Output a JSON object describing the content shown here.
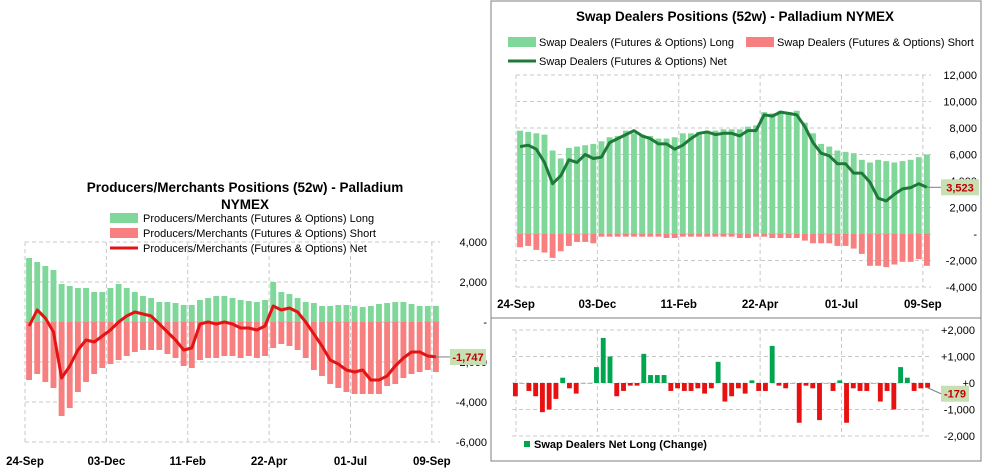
{
  "colors": {
    "long": "#7fd89a",
    "short": "#f77f7f",
    "net_left": "#e31414",
    "net_right": "#1f7a3a",
    "pos_change": "#00a550",
    "neg_change": "#e81111",
    "callout_bg": "#c6e0b4",
    "grid": "#c8c8c8",
    "green_tick": "#00b050",
    "red_tick": "#e81111"
  },
  "chart_data": [
    {
      "id": "producers",
      "type": "bar",
      "title": "Producers/Merchants  Positions  (52w) - Palladium",
      "title_line2": "NYMEX",
      "legend": [
        "Producers/Merchants (Futures & Options)  Long",
        "Producers/Merchants (Futures & Options)  Short",
        "Producers/Merchants (Futures & Options)  Net"
      ],
      "xtick_labels": [
        "24-Sep",
        "03-Dec",
        "11-Feb",
        "22-Apr",
        "01-Jul",
        "09-Sep"
      ],
      "xtick_index": [
        0,
        10,
        20,
        30,
        40,
        50
      ],
      "yticks": [
        4000,
        2000,
        0,
        -2000,
        -4000,
        -6000
      ],
      "ytick_labels": [
        "4,000",
        "2,000",
        "-",
        "-2,000",
        "-4,000",
        "-6,000"
      ],
      "ylim": [
        -6000,
        4000
      ],
      "long": [
        3200,
        3000,
        2800,
        2600,
        1900,
        1800,
        1700,
        1700,
        1500,
        1500,
        1700,
        1900,
        1700,
        1500,
        1300,
        1200,
        1000,
        1000,
        950,
        850,
        850,
        1100,
        1200,
        1300,
        1300,
        1200,
        1100,
        1050,
        1000,
        1100,
        2000,
        1500,
        1400,
        1200,
        1000,
        950,
        800,
        800,
        850,
        850,
        800,
        750,
        800,
        900,
        950,
        1000,
        1000,
        900,
        800,
        800,
        800
      ],
      "short": [
        -2900,
        -2600,
        -3000,
        -3300,
        -4700,
        -4300,
        -3500,
        -3000,
        -2600,
        -2300,
        -2100,
        -1900,
        -1700,
        -1500,
        -1400,
        -1400,
        -1400,
        -1600,
        -1800,
        -2200,
        -2300,
        -1900,
        -1800,
        -1800,
        -1700,
        -1700,
        -1800,
        -1700,
        -1800,
        -1700,
        -1300,
        -1100,
        -1200,
        -1400,
        -1800,
        -2400,
        -2700,
        -3100,
        -3300,
        -3500,
        -3600,
        -3600,
        -3600,
        -3600,
        -3200,
        -3100,
        -2800,
        -2600,
        -2500,
        -2400,
        -2500
      ],
      "net": [
        -200,
        600,
        200,
        -500,
        -2800,
        -2200,
        -1400,
        -900,
        -1000,
        -700,
        -400,
        0,
        300,
        500,
        400,
        300,
        -100,
        -500,
        -900,
        -1400,
        -1300,
        -100,
        0,
        -100,
        0,
        -100,
        -300,
        -300,
        -400,
        -200,
        800,
        600,
        700,
        500,
        0,
        -600,
        -1200,
        -1900,
        -2100,
        -2400,
        -2500,
        -2400,
        -2900,
        -2900,
        -2700,
        -2200,
        -1800,
        -1500,
        -1500,
        -1700,
        -1747
      ],
      "last_value_label": "-1,747"
    },
    {
      "id": "swap",
      "type": "bar",
      "title": "Swap Dealers Positions  (52w) - Palladium  NYMEX",
      "legend": [
        "Swap Dealers (Futures & Options)  Long",
        "Swap Dealers (Futures & Options)  Short",
        "Swap Dealers (Futures & Options)  Net"
      ],
      "xtick_labels": [
        "24-Sep",
        "03-Dec",
        "11-Feb",
        "22-Apr",
        "01-Jul",
        "09-Sep"
      ],
      "xtick_index": [
        0,
        10,
        20,
        30,
        40,
        50
      ],
      "yticks": [
        12000,
        10000,
        8000,
        6000,
        4000,
        2000,
        0,
        -2000,
        -4000
      ],
      "ytick_labels": [
        "12,000",
        "10,000",
        "8,000",
        "6,000",
        "4,000",
        "2,000",
        "-",
        "-2,000",
        "-4,000"
      ],
      "ylim": [
        -4000,
        12000
      ],
      "long": [
        7800,
        7700,
        7600,
        7500,
        6300,
        5700,
        6500,
        6600,
        6700,
        6800,
        7000,
        7300,
        7400,
        7800,
        7600,
        7500,
        7400,
        7200,
        7200,
        7300,
        7600,
        7600,
        7700,
        7800,
        7800,
        7900,
        7900,
        7900,
        8100,
        8200,
        9200,
        9100,
        9300,
        9200,
        9300,
        8400,
        7600,
        6800,
        6600,
        6300,
        6200,
        6100,
        5600,
        5400,
        5600,
        5500,
        5400,
        5500,
        5600,
        5800,
        6000
      ],
      "short": [
        -1000,
        -900,
        -1200,
        -1400,
        -1800,
        -1300,
        -900,
        -600,
        -600,
        -700,
        -200,
        -200,
        -200,
        -200,
        -200,
        -200,
        -200,
        -200,
        -300,
        -300,
        -200,
        -200,
        -200,
        -200,
        -200,
        -200,
        -200,
        -300,
        -300,
        -200,
        -200,
        -300,
        -300,
        -300,
        -300,
        -500,
        -700,
        -700,
        -700,
        -900,
        -900,
        -1100,
        -1500,
        -2400,
        -2400,
        -2500,
        -2300,
        -2100,
        -2100,
        -1900,
        -2400
      ],
      "net": [
        6600,
        6700,
        6400,
        5400,
        3800,
        4400,
        5600,
        5400,
        6000,
        5700,
        5800,
        6900,
        7200,
        7500,
        7800,
        7400,
        7200,
        6800,
        6800,
        6400,
        6700,
        7200,
        7600,
        7700,
        7500,
        7600,
        7600,
        7400,
        7800,
        7800,
        9000,
        8900,
        9200,
        9100,
        9000,
        8100,
        6900,
        6100,
        5900,
        5300,
        5300,
        4600,
        4600,
        3900,
        2700,
        2500,
        3000,
        3400,
        3500,
        3800,
        3523
      ],
      "last_value_label": "3,523"
    },
    {
      "id": "swap_change",
      "type": "bar",
      "legend": [
        "Swap Dealers  Net Long (Change)"
      ],
      "yticks": [
        2000,
        1000,
        0,
        -1000,
        -2000
      ],
      "ytick_labels": [
        "+2,000",
        "+1,000",
        "+0",
        "-1,000",
        "-2,000"
      ],
      "ylim": [
        -2000,
        2000
      ],
      "change": [
        -500,
        0,
        -300,
        -500,
        -1100,
        -1000,
        -600,
        200,
        -200,
        -400,
        0,
        0,
        600,
        1700,
        1000,
        -500,
        -300,
        -100,
        -100,
        1100,
        300,
        300,
        300,
        -300,
        -200,
        -300,
        -300,
        -200,
        -400,
        -200,
        800,
        -700,
        -500,
        -200,
        -400,
        100,
        -300,
        -300,
        1400,
        -100,
        -200,
        0,
        -1500,
        -100,
        -200,
        -1400,
        0,
        -300,
        100,
        -1500,
        -200,
        -300,
        -300,
        0,
        -700,
        -300,
        -1000,
        600,
        200,
        -300,
        -200,
        -179
      ],
      "last_value_label": "-179"
    }
  ]
}
